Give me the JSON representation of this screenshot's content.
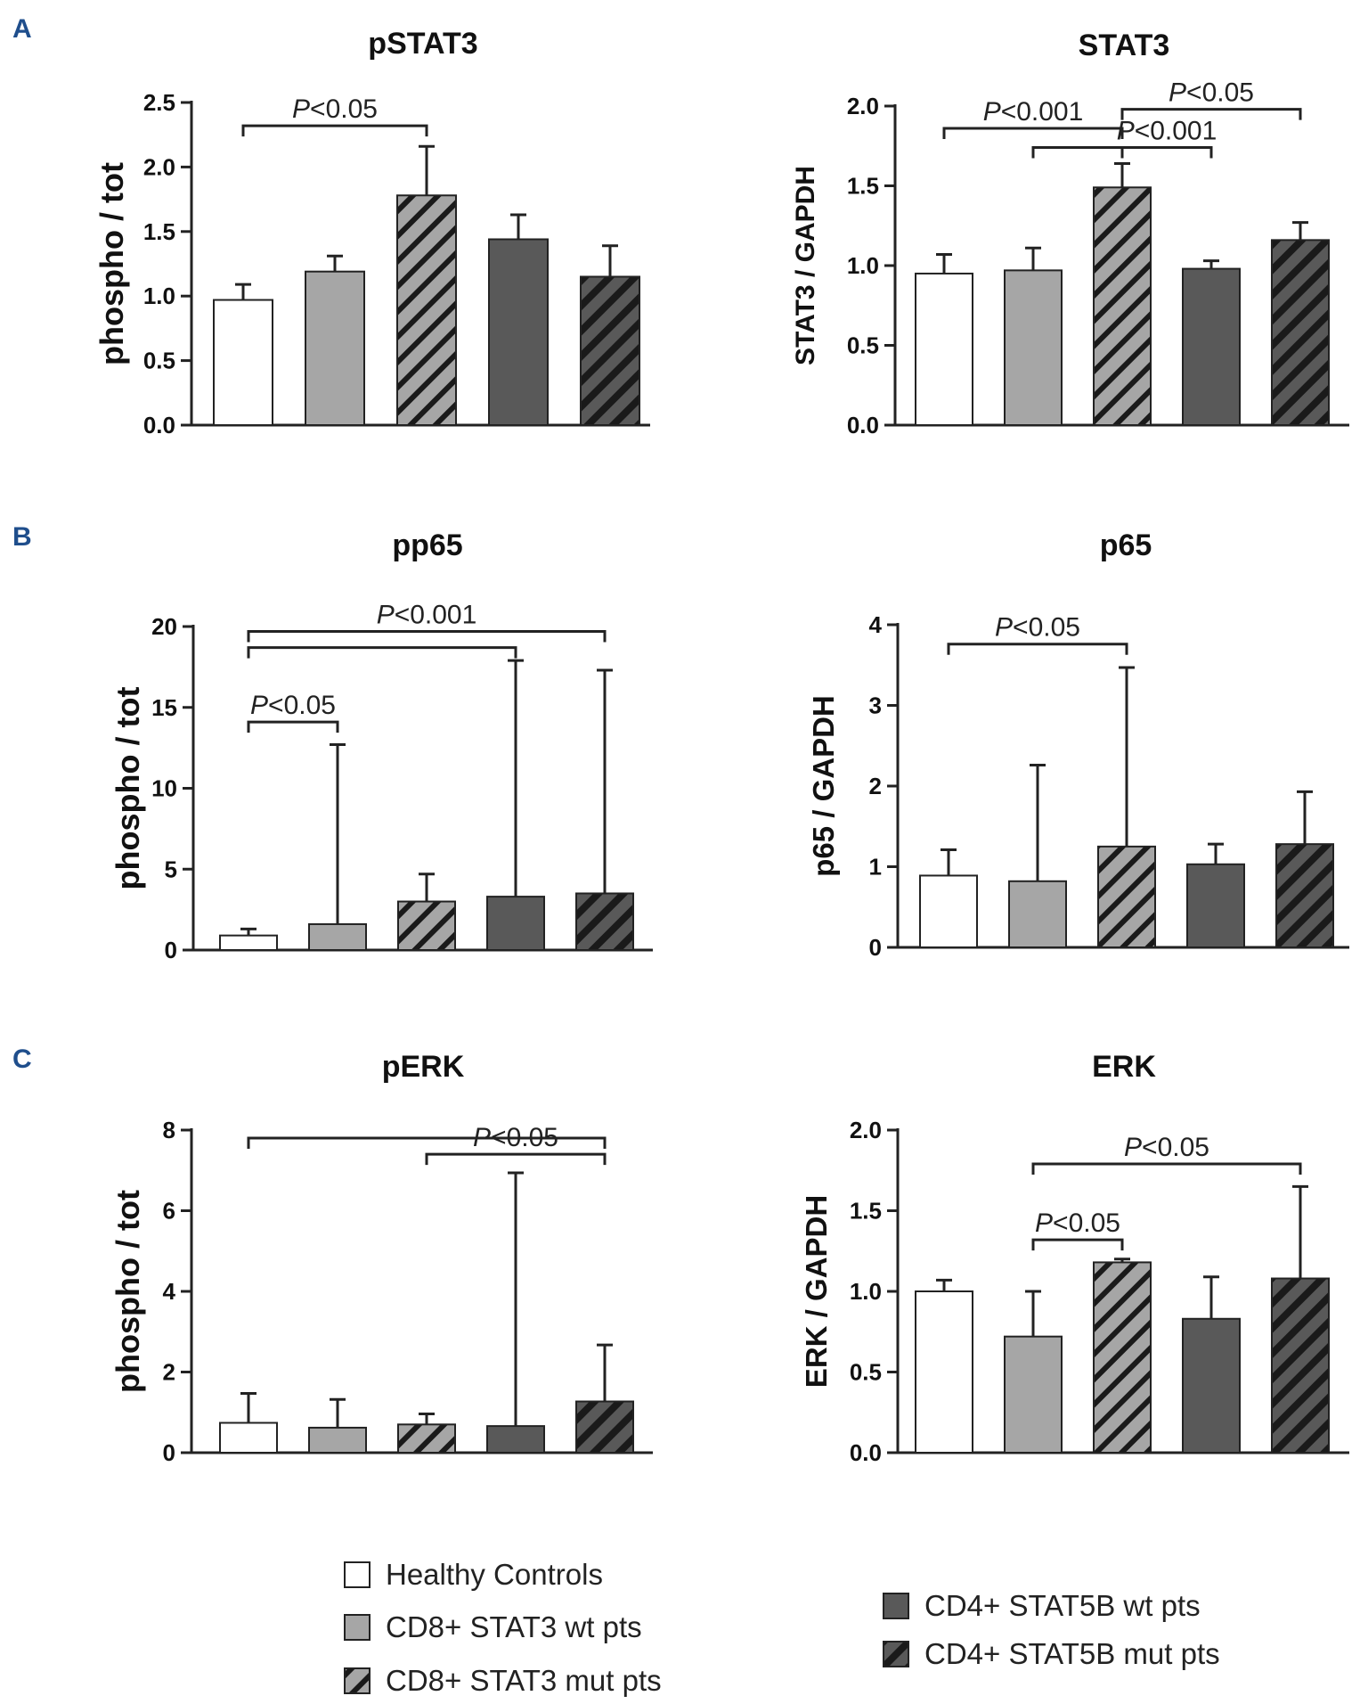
{
  "panels": [
    "A",
    "B",
    "C"
  ],
  "legend": [
    {
      "label": "Healthy Controls",
      "fill": "#ffffff",
      "hatch": false
    },
    {
      "label": "CD8+ STAT3 wt pts",
      "fill": "#a6a6a6",
      "hatch": false
    },
    {
      "label": "CD8+ STAT3 mut pts",
      "fill": "#a6a6a6",
      "hatch": true
    },
    {
      "label": "CD4+ STAT5B wt pts",
      "fill": "#595959",
      "hatch": false
    },
    {
      "label": "CD4+ STAT5B mut pts",
      "fill": "#595959",
      "hatch": true
    }
  ],
  "colors": {
    "axis": "#222222",
    "panel_letter": "#1f4e8c",
    "light_bar": "#a6a6a6",
    "dark_bar": "#595959"
  },
  "chart_data": [
    {
      "id": "pstat3",
      "panel": "A",
      "type": "bar",
      "title": "pSTAT3",
      "ylabel": "phospho / tot",
      "ylim": [
        0,
        2.5
      ],
      "yticks": [
        "0.0",
        "0.5",
        "1.0",
        "1.5",
        "2.0",
        "2.5"
      ],
      "categories": [
        "Healthy Controls",
        "CD8+ STAT3 wt pts",
        "CD8+ STAT3 mut pts",
        "CD4+ STAT5B wt pts",
        "CD4+ STAT5B mut pts"
      ],
      "values": [
        0.97,
        1.19,
        1.78,
        1.44,
        1.15
      ],
      "errors": [
        0.12,
        0.12,
        0.38,
        0.19,
        0.24
      ],
      "significance": [
        {
          "from": 0,
          "to": 2,
          "y": 2.32,
          "label": "P<0.05",
          "show_label": true
        }
      ]
    },
    {
      "id": "stat3",
      "panel": "A",
      "type": "bar",
      "title": "STAT3",
      "ylabel": "STAT3 / GAPDH",
      "ylim": [
        0,
        2.0
      ],
      "yticks": [
        "0.0",
        "0.5",
        "1.0",
        "1.5",
        "2.0"
      ],
      "categories": [
        "Healthy Controls",
        "CD8+ STAT3 wt pts",
        "CD8+ STAT3 mut pts",
        "CD4+ STAT5B wt pts",
        "CD4+ STAT5B mut pts"
      ],
      "values": [
        0.95,
        0.97,
        1.49,
        0.98,
        1.16
      ],
      "errors": [
        0.12,
        0.14,
        0.15,
        0.05,
        0.11
      ],
      "significance": [
        {
          "from": 0,
          "to": 2,
          "y": 1.86,
          "label": "P<0.001",
          "show_label": true
        },
        {
          "from": 1,
          "to": 2,
          "y": 1.74,
          "label": "",
          "show_label": false
        },
        {
          "from": 2,
          "to": 4,
          "y": 1.98,
          "label": "P<0.05",
          "show_label": true
        },
        {
          "from": 2,
          "to": 3,
          "y": 1.74,
          "label": "P<0.001",
          "show_label": true
        }
      ]
    },
    {
      "id": "pp65",
      "panel": "B",
      "type": "bar",
      "title": "pp65",
      "ylabel": "phospho / tot",
      "ylim": [
        0,
        20
      ],
      "yticks": [
        "0",
        "5",
        "10",
        "15",
        "20"
      ],
      "categories": [
        "Healthy Controls",
        "CD8+ STAT3 wt pts",
        "CD8+ STAT3 mut pts",
        "CD4+ STAT5B wt pts",
        "CD4+ STAT5B mut pts"
      ],
      "values": [
        0.9,
        1.6,
        3.0,
        3.3,
        3.5
      ],
      "errors": [
        0.4,
        11.1,
        1.7,
        14.6,
        13.8
      ],
      "significance": [
        {
          "from": 0,
          "to": 4,
          "y": 19.7,
          "label": "P<0.001",
          "show_label": true
        },
        {
          "from": 0,
          "to": 3,
          "y": 18.7,
          "label": "",
          "show_label": false
        },
        {
          "from": 0,
          "to": 1,
          "y": 14.1,
          "label": "P<0.05",
          "show_label": true
        }
      ]
    },
    {
      "id": "p65",
      "panel": "B",
      "type": "bar",
      "title": "p65",
      "ylabel": "p65 / GAPDH",
      "ylim": [
        0,
        4
      ],
      "yticks": [
        "0",
        "1",
        "2",
        "3",
        "4"
      ],
      "categories": [
        "Healthy Controls",
        "CD8+ STAT3 wt pts",
        "CD8+ STAT3 mut pts",
        "CD4+ STAT5B wt pts",
        "CD4+ STAT5B mut pts"
      ],
      "values": [
        0.89,
        0.82,
        1.25,
        1.03,
        1.28
      ],
      "errors": [
        0.32,
        1.44,
        2.22,
        0.25,
        0.65
      ],
      "significance": [
        {
          "from": 0,
          "to": 2,
          "y": 3.76,
          "label": "P<0.05",
          "show_label": true
        }
      ]
    },
    {
      "id": "perk",
      "panel": "C",
      "type": "bar",
      "title": "pERK",
      "ylabel": "phospho / tot",
      "ylim": [
        0,
        8
      ],
      "yticks": [
        "0",
        "2",
        "4",
        "6",
        "8"
      ],
      "categories": [
        "Healthy Controls",
        "CD8+ STAT3 wt pts",
        "CD8+ STAT3 mut pts",
        "CD4+ STAT5B wt pts",
        "CD4+ STAT5B mut pts"
      ],
      "values": [
        0.74,
        0.62,
        0.7,
        0.66,
        1.27
      ],
      "errors": [
        0.73,
        0.7,
        0.26,
        6.28,
        1.4
      ],
      "significance": [
        {
          "from": 0,
          "to": 4,
          "y": 7.8,
          "label": "",
          "show_label": false
        },
        {
          "from": 2,
          "to": 4,
          "y": 7.4,
          "label": "P<0.05",
          "show_label": true
        }
      ]
    },
    {
      "id": "erk",
      "panel": "C",
      "type": "bar",
      "title": "ERK",
      "ylabel": "ERK / GAPDH",
      "ylim": [
        0,
        2.0
      ],
      "yticks": [
        "0.0",
        "0.5",
        "1.0",
        "1.5",
        "2.0"
      ],
      "categories": [
        "Healthy Controls",
        "CD8+ STAT3 wt pts",
        "CD8+ STAT3 mut pts",
        "CD4+ STAT5B wt pts",
        "CD4+ STAT5B mut pts"
      ],
      "values": [
        1.0,
        0.72,
        1.18,
        0.83,
        1.08
      ],
      "errors": [
        0.07,
        0.28,
        0.02,
        0.26,
        0.57
      ],
      "significance": [
        {
          "from": 1,
          "to": 4,
          "y": 1.79,
          "label": "P<0.05",
          "show_label": true
        },
        {
          "from": 1,
          "to": 2,
          "y": 1.32,
          "label": "P<0.05",
          "show_label": true
        }
      ]
    }
  ]
}
